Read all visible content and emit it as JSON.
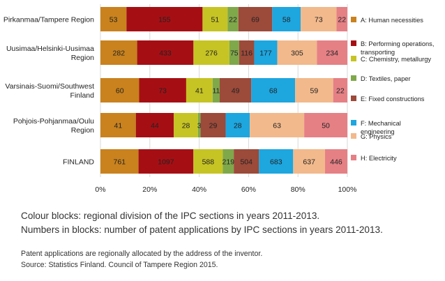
{
  "chart_data": {
    "type": "bar",
    "orientation": "horizontal",
    "stacked": "percent",
    "grid": true,
    "legend_position": "right",
    "categories": [
      [
        "Pirkanmaa/Tampere Region"
      ],
      [
        "Uusimaa/Helsinki-Uusimaa",
        "Region"
      ],
      [
        "Varsinais-Suomi/Southwest",
        "Finland"
      ],
      [
        "Pohjois-Pohjanmaa/Oulu",
        "Region"
      ],
      [
        "FINLAND"
      ]
    ],
    "series": [
      {
        "name": "A: Human necessities",
        "legend_lines": [
          "A: Human necessities"
        ],
        "color": "#c9821e",
        "values": [
          53,
          282,
          60,
          41,
          761
        ]
      },
      {
        "name": "B: Performing operations, transporting",
        "legend_lines": [
          "B: Performing operations,",
          "transporting"
        ],
        "color": "#a50f14",
        "values": [
          155,
          433,
          73,
          44,
          1097
        ]
      },
      {
        "name": "C: Chemistry, metallurgy",
        "legend_lines": [
          "C: Chemistry, metallurgy"
        ],
        "color": "#c6c424",
        "values": [
          51,
          276,
          41,
          28,
          588
        ]
      },
      {
        "name": "D: Textiles, paper",
        "legend_lines": [
          "D: Textiles, paper"
        ],
        "color": "#7fa84a",
        "values": [
          22,
          75,
          11,
          3,
          219
        ]
      },
      {
        "name": "E: Fixed constructions",
        "legend_lines": [
          "E: Fixed constructions"
        ],
        "color": "#9c4a3a",
        "values": [
          69,
          116,
          49,
          29,
          504
        ]
      },
      {
        "name": "F: Mechanical engineering",
        "legend_lines": [
          "F: Mechanical",
          "engineering"
        ],
        "color": "#1ea6df",
        "values": [
          58,
          177,
          68,
          28,
          683
        ]
      },
      {
        "name": "G: Physics",
        "legend_lines": [
          "G: Physics"
        ],
        "color": "#f2b98c",
        "values": [
          73,
          305,
          59,
          63,
          637
        ]
      },
      {
        "name": "H: Electricity",
        "legend_lines": [
          "H: Electricity"
        ],
        "color": "#e58085",
        "values": [
          22,
          234,
          22,
          50,
          446
        ]
      }
    ],
    "x_ticks": [
      "0%",
      "20%",
      "40%",
      "60%",
      "80%",
      "100%"
    ],
    "xlim": [
      0,
      100
    ]
  },
  "caption": {
    "line1": "Colour blocks: regional division of the IPC sections in years 2011-2013.",
    "line2": "Numbers in blocks: number of patent applications by IPC sections in years 2011-2013.",
    "note1": "Patent applications are regionally allocated by the address of the inventor.",
    "note2": "Source: Statistics Finland. Council of Tampere Region 2015."
  }
}
